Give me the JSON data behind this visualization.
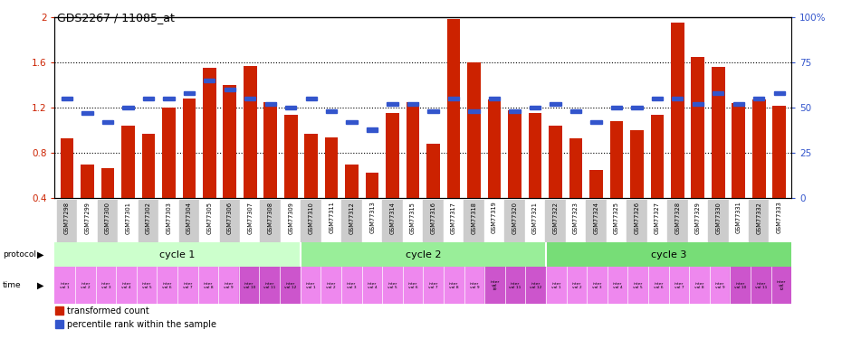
{
  "title": "GDS2267 / 11085_at",
  "categories": [
    "GSM77298",
    "GSM77299",
    "GSM77300",
    "GSM77301",
    "GSM77302",
    "GSM77303",
    "GSM77304",
    "GSM77305",
    "GSM77306",
    "GSM77307",
    "GSM77308",
    "GSM77309",
    "GSM77310",
    "GSM77311",
    "GSM77312",
    "GSM77313",
    "GSM77314",
    "GSM77315",
    "GSM77316",
    "GSM77317",
    "GSM77318",
    "GSM77319",
    "GSM77320",
    "GSM77321",
    "GSM77322",
    "GSM77323",
    "GSM77324",
    "GSM77325",
    "GSM77326",
    "GSM77327",
    "GSM77328",
    "GSM77329",
    "GSM77330",
    "GSM77331",
    "GSM77332",
    "GSM77333"
  ],
  "red_values": [
    0.93,
    0.7,
    0.67,
    1.04,
    0.97,
    1.2,
    1.28,
    1.55,
    1.4,
    1.57,
    1.25,
    1.14,
    0.97,
    0.94,
    0.7,
    0.63,
    1.15,
    1.25,
    0.88,
    1.98,
    1.6,
    1.27,
    1.18,
    1.15,
    1.04,
    0.93,
    0.65,
    1.08,
    1.0,
    1.14,
    1.95,
    1.65,
    1.56,
    1.24,
    1.27,
    1.22
  ],
  "blue_percentiles": [
    55,
    47,
    42,
    50,
    55,
    55,
    58,
    65,
    60,
    55,
    52,
    50,
    55,
    48,
    42,
    38,
    52,
    52,
    48,
    55,
    48,
    55,
    48,
    50,
    52,
    48,
    42,
    50,
    50,
    55,
    55,
    52,
    58,
    52,
    55,
    58
  ],
  "ylim": [
    0.4,
    2.0
  ],
  "yticks_left": [
    0.4,
    0.8,
    1.2,
    1.6,
    2.0
  ],
  "ytick_labels_left": [
    "0.4",
    "0.8",
    "1.2",
    "1.6",
    "2"
  ],
  "yticks_right": [
    0,
    25,
    50,
    75,
    100
  ],
  "ytick_labels_right": [
    "0",
    "25",
    "50",
    "75",
    "100%"
  ],
  "dotted_lines": [
    0.8,
    1.2,
    1.6
  ],
  "bar_color": "#cc2200",
  "dot_color": "#3355cc",
  "bg_color": "#ffffff",
  "cycle1_color": "#ccffcc",
  "cycle2_color": "#99ee99",
  "cycle3_color": "#77dd77",
  "time_color_light": "#ee88ee",
  "time_color_dark": "#cc55cc",
  "protocol_label": "protocol",
  "time_label": "time",
  "cycle_labels": [
    "cycle 1",
    "cycle 2",
    "cycle 3"
  ],
  "legend_bar_label": "transformed count",
  "legend_dot_label": "percentile rank within the sample",
  "time_labels_c1": [
    "inter\nval 1",
    "inter\nval 2",
    "inter\nval 3",
    "inter\nval 4",
    "inter\nval 5",
    "inter\nval 6",
    "inter\nval 7",
    "inter\nval 8",
    "inter\nval 9",
    "inter\nval 10",
    "inter\nval 11",
    "inter\nval 12"
  ],
  "time_labels_c2": [
    "inter\nval 1",
    "inter\nval 2",
    "inter\nval 3",
    "inter\nval 4",
    "inter\nval 5",
    "inter\nval 6",
    "inter\nval 7",
    "inter\nval 8",
    "inter\nval 9",
    "inter\nval\n10",
    "inter\nval 11",
    "inter\nval 12"
  ],
  "time_labels_c3": [
    "inter\nval 1",
    "inter\nval 2",
    "inter\nval 3",
    "inter\nval 4",
    "inter\nval 5",
    "inter\nval 6",
    "inter\nval 7",
    "inter\nval 8",
    "inter\nval 9",
    "inter\nval 10",
    "inter\nval 11",
    "inter\nval\n12"
  ]
}
